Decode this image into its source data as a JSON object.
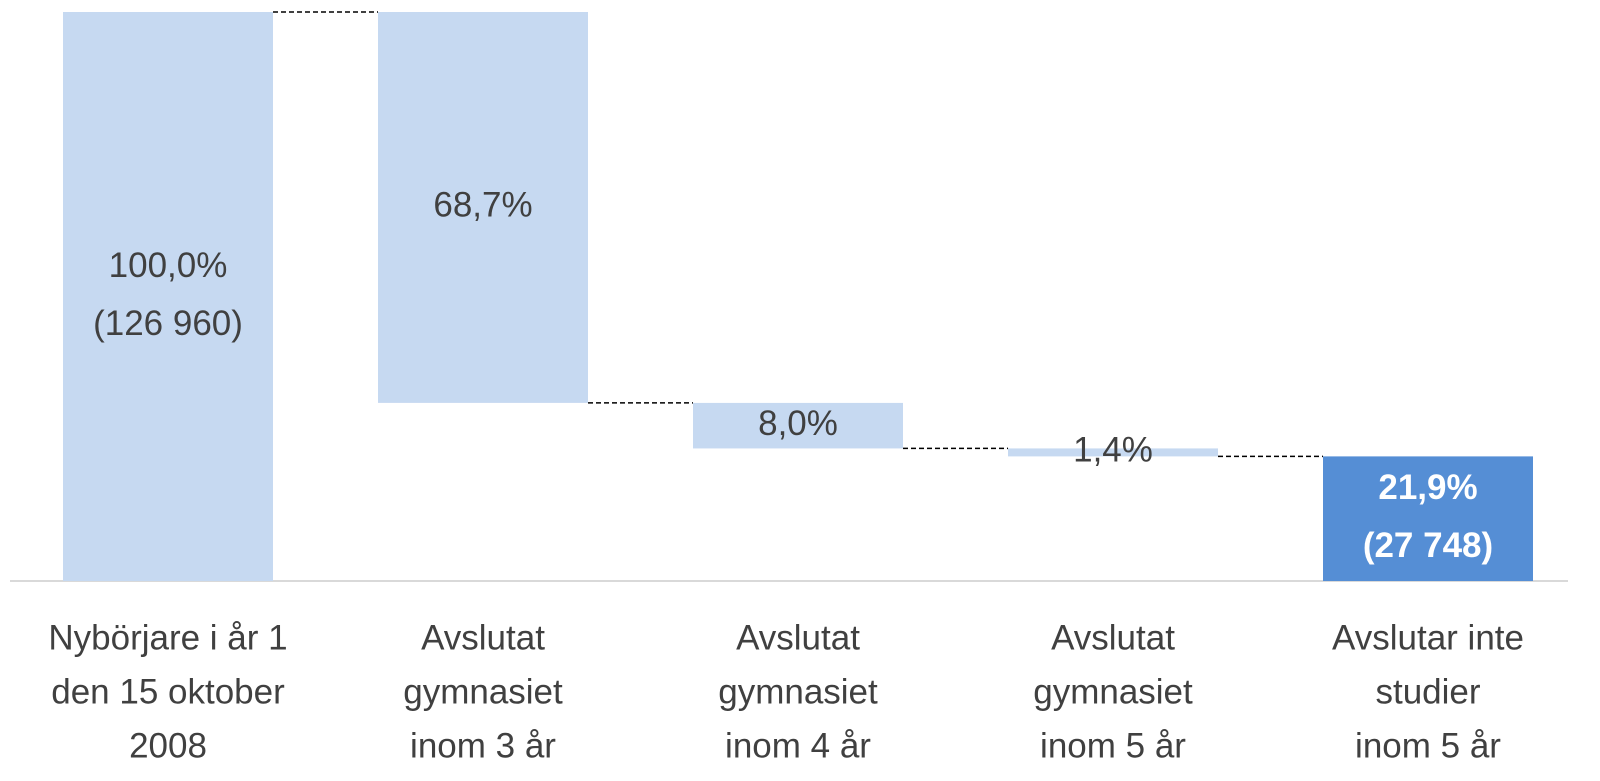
{
  "chart_data": {
    "type": "waterfall",
    "categories": [
      [
        "Nybörjare i år 1",
        "den 15 oktober",
        "2008"
      ],
      [
        "Avslutat",
        "gymnasiet",
        "inom 3 år"
      ],
      [
        "Avslutat",
        "gymnasiet",
        "inom 4 år"
      ],
      [
        "Avslutat",
        "gymnasiet",
        "inom 5 år"
      ],
      [
        "Avslutar inte",
        "studier",
        "inom 5 år"
      ]
    ],
    "values": [
      100.0,
      68.7,
      8.0,
      1.4,
      21.9
    ],
    "value_labels": [
      [
        "100,0%",
        "(126 960)"
      ],
      [
        "68,7%"
      ],
      [
        "8,0%"
      ],
      [
        "1,4%"
      ],
      [
        "21,9%",
        "(27 748)"
      ]
    ],
    "measure": [
      "absolute",
      "decrease",
      "decrease",
      "decrease",
      "absolute"
    ],
    "colors": [
      "#c6d9f1",
      "#c6d9f1",
      "#c6d9f1",
      "#c6d9f1",
      "#558ed5"
    ],
    "ylim": [
      0,
      100
    ]
  }
}
